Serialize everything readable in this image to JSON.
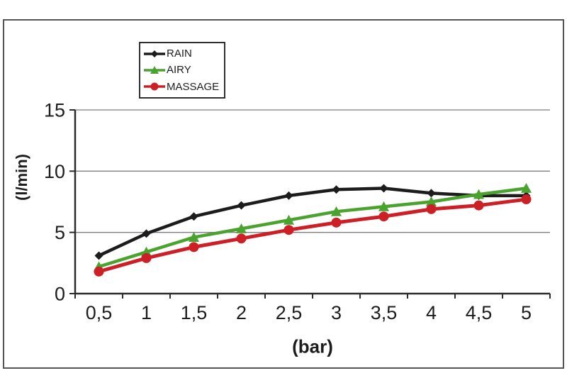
{
  "chart_data": {
    "type": "line",
    "title": "",
    "xlabel": "(bar)",
    "ylabel": "(l/min)",
    "x": [
      0.5,
      1,
      1.5,
      2,
      2.5,
      3,
      3.5,
      4,
      4.5,
      5
    ],
    "x_ticklabels": [
      "0,5",
      "1",
      "1,5",
      "2",
      "2,5",
      "3",
      "3,5",
      "4",
      "4,5",
      "5"
    ],
    "y_ticks": [
      0,
      5,
      10,
      15
    ],
    "y_ticklabels": [
      "0",
      "5",
      "10",
      "15"
    ],
    "ylim": [
      0,
      15
    ],
    "grid": true,
    "legend_position": "top-center-inside",
    "series": [
      {
        "name": "RAIN",
        "color": "#1c1c1c",
        "marker": "diamond",
        "values": [
          3.1,
          4.9,
          6.3,
          7.2,
          8.0,
          8.5,
          8.6,
          8.2,
          8.0,
          8.0
        ]
      },
      {
        "name": "AIRY",
        "color": "#4aa32e",
        "marker": "triangle",
        "values": [
          2.2,
          3.4,
          4.6,
          5.3,
          6.0,
          6.7,
          7.1,
          7.5,
          8.1,
          8.6
        ]
      },
      {
        "name": "MASSAGE",
        "color": "#cc2026",
        "marker": "circle",
        "values": [
          1.8,
          2.9,
          3.8,
          4.5,
          5.2,
          5.8,
          6.3,
          6.9,
          7.2,
          7.7
        ]
      }
    ]
  },
  "colors": {
    "gridline": "#7f7f7f",
    "axis": "#2b2b2b",
    "frame_border": "#555555",
    "text": "#1d1d1d",
    "background": "#ffffff"
  }
}
